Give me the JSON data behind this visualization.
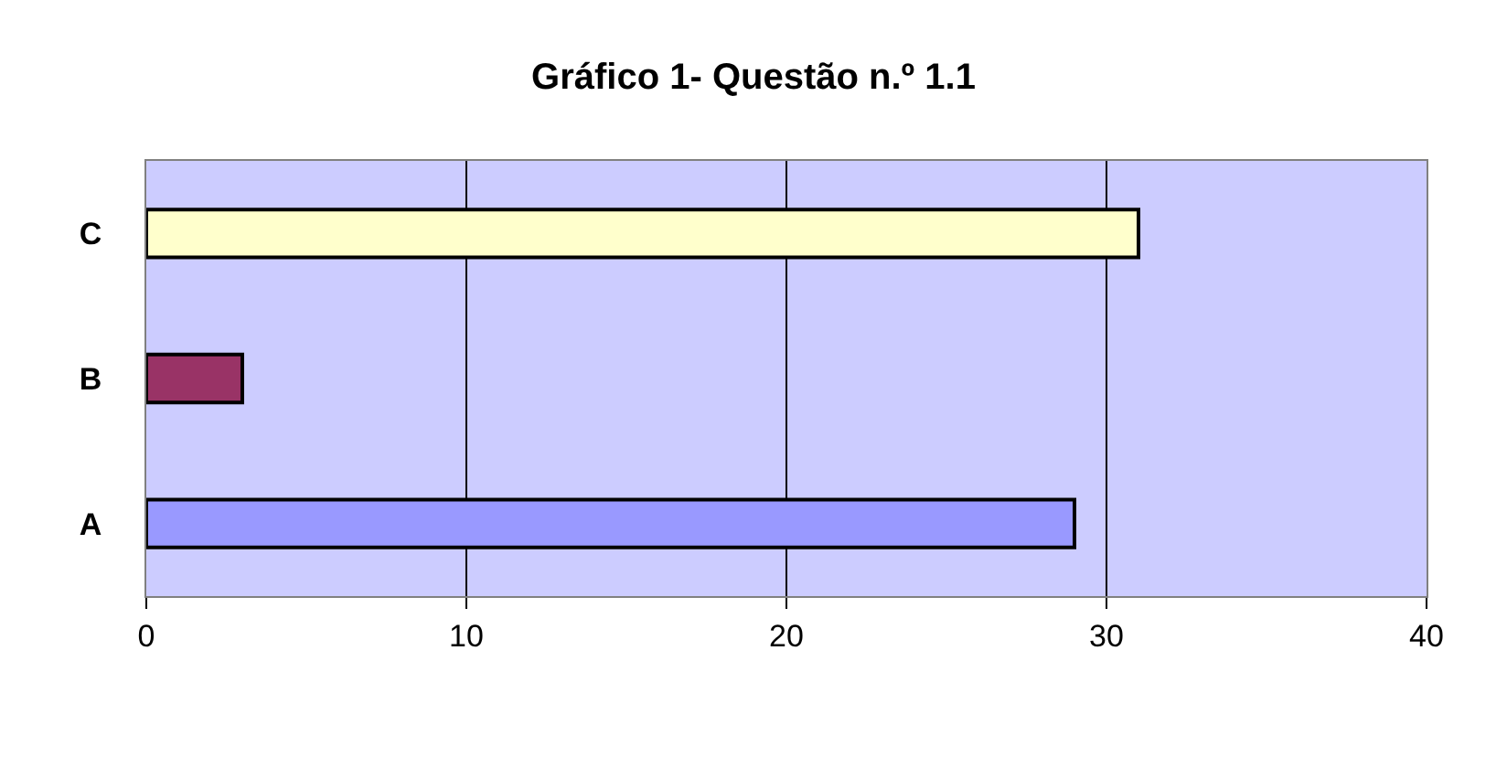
{
  "chart_data": {
    "type": "bar",
    "orientation": "horizontal",
    "title": "Gráfico 1- Questão n.º 1.1",
    "categories": [
      "C",
      "B",
      "A"
    ],
    "values": [
      31,
      3,
      29
    ],
    "colors": [
      "#ffffcc",
      "#993366",
      "#9999ff"
    ],
    "xlim": [
      0,
      40
    ],
    "xticks": [
      0,
      10,
      20,
      30,
      40
    ],
    "grid": "x"
  }
}
